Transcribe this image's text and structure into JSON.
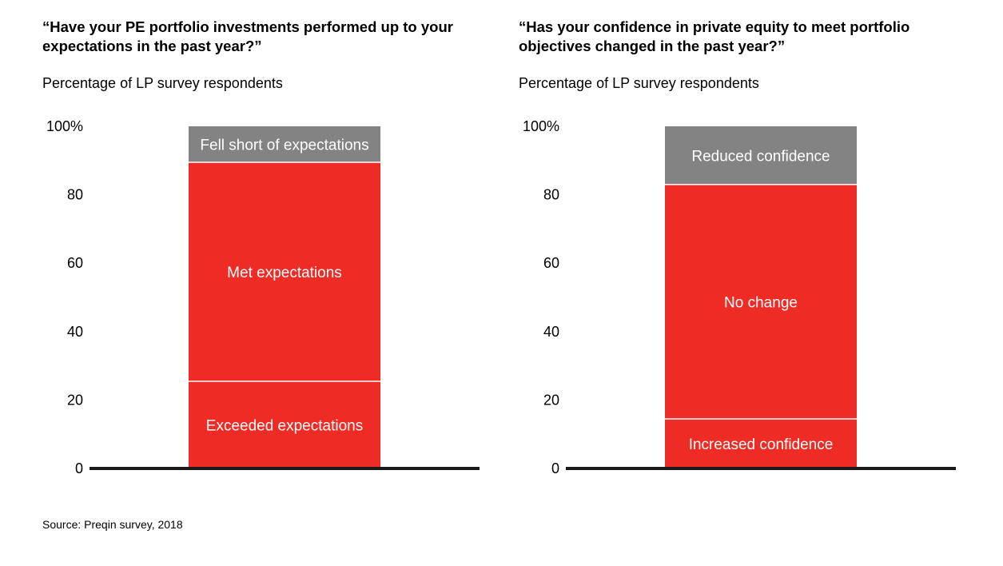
{
  "chart_data": [
    {
      "type": "bar",
      "title": "“Have your PE portfolio investments performed up to your expectations in the past year?”",
      "subtitle": "Percentage of LP survey respondents",
      "yticks": [
        "0",
        "20",
        "40",
        "60",
        "80",
        "100%"
      ],
      "ylim": [
        0,
        100
      ],
      "grid": false,
      "stacked": true,
      "segments": [
        {
          "name": "Exceeded expectations",
          "value": 25.5,
          "color": "#ee2b24"
        },
        {
          "name": "Met expectations",
          "value": 64,
          "color": "#ee2b24"
        },
        {
          "name": "Fell short of expectations",
          "value": 10.5,
          "color": "#838383"
        }
      ]
    },
    {
      "type": "bar",
      "title": "“Has your confidence in private equity to meet portfolio objectives changed in the past year?”",
      "subtitle": "Percentage of LP survey respondents",
      "yticks": [
        "0",
        "20",
        "40",
        "60",
        "80",
        "100%"
      ],
      "ylim": [
        0,
        100
      ],
      "grid": false,
      "stacked": true,
      "segments": [
        {
          "name": "Increased confidence",
          "value": 14.5,
          "color": "#ee2b24"
        },
        {
          "name": "No change",
          "value": 68.5,
          "color": "#ee2b24"
        },
        {
          "name": "Reduced confidence",
          "value": 17,
          "color": "#838383"
        }
      ]
    }
  ],
  "source": "Source: Preqin survey, 2018",
  "colors": {
    "accent": "#ee2b24",
    "neutral": "#838383",
    "axis": "#1a1a1a"
  }
}
